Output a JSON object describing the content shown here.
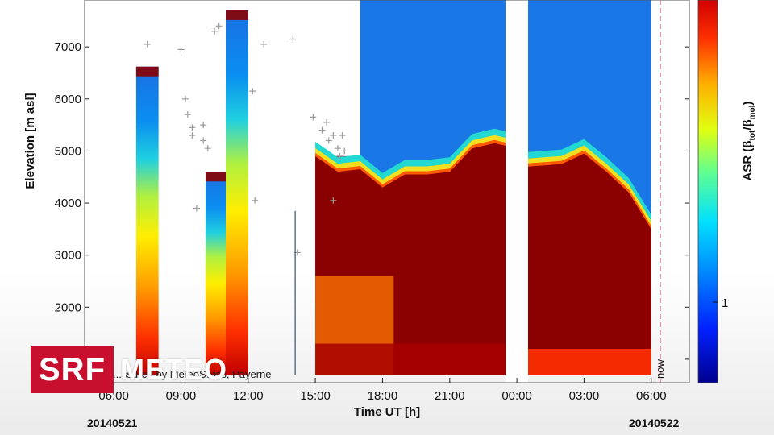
{
  "brand": {
    "logo_box": "SRF",
    "logo_text": "METEO",
    "colors": {
      "logo_red": "#c8102e"
    }
  },
  "chart_data": {
    "type": "heatmap",
    "xlabel": "Time UT [h]",
    "ylabel": "Elevation [m asl]",
    "colorbar_label_main": "ASR (β",
    "colorbar_label_sub1": "tot",
    "colorbar_label_mid": "/β",
    "colorbar_label_sub2": "mol",
    "colorbar_label_end": ")",
    "colorbar_tick": "1",
    "x_tick_labels": [
      "06:00",
      "09:00",
      "12:00",
      "15:00",
      "18:00",
      "21:00",
      "00:00",
      "03:00",
      "06:00"
    ],
    "x_tick_hours": [
      6,
      9,
      12,
      15,
      18,
      21,
      24,
      27,
      30
    ],
    "y_ticks": [
      1000,
      2000,
      3000,
      4000,
      5000,
      6000,
      7000
    ],
    "xlim_hours": [
      4.7,
      31.7
    ],
    "ylim": [
      550,
      7900
    ],
    "dates": {
      "start": "20140521",
      "end": "20140522"
    },
    "credit": "...ssured by MeteoSwiss, Payerne",
    "now_label": "now",
    "now_hour": 30.4,
    "segments": [
      {
        "from": 7.0,
        "to": 8.0,
        "top": 6620,
        "bottom": 700
      },
      {
        "from": 10.1,
        "to": 11.0,
        "top": 4600,
        "bottom": 700
      },
      {
        "from": 11.0,
        "to": 12.0,
        "top": 7700,
        "bottom": 700
      },
      {
        "from": 15.0,
        "to": 17.0,
        "top": 4900,
        "bottom": 700
      },
      {
        "from": 17.0,
        "to": 23.5,
        "top": 7900,
        "bottom": 700
      },
      {
        "from": 24.5,
        "to": 30.0,
        "top": 7900,
        "bottom": 700
      }
    ],
    "cloud_top_profile": [
      {
        "h": 15.0,
        "elev": 4900
      },
      {
        "h": 16.0,
        "elev": 4600
      },
      {
        "h": 17.0,
        "elev": 4650
      },
      {
        "h": 18.0,
        "elev": 4300
      },
      {
        "h": 19.0,
        "elev": 4550
      },
      {
        "h": 20.0,
        "elev": 4550
      },
      {
        "h": 21.0,
        "elev": 4600
      },
      {
        "h": 22.0,
        "elev": 5050
      },
      {
        "h": 23.0,
        "elev": 5150
      },
      {
        "h": 23.5,
        "elev": 5100
      },
      {
        "h": 24.5,
        "elev": 4700
      },
      {
        "h": 26.0,
        "elev": 4750
      },
      {
        "h": 27.0,
        "elev": 4950
      },
      {
        "h": 28.0,
        "elev": 4600
      },
      {
        "h": 29.0,
        "elev": 4200
      },
      {
        "h": 30.0,
        "elev": 3500
      }
    ],
    "cloud_base_points": [
      {
        "h": 7.5,
        "elev": 7050
      },
      {
        "h": 9.0,
        "elev": 6950
      },
      {
        "h": 9.2,
        "elev": 6000
      },
      {
        "h": 9.3,
        "elev": 5700
      },
      {
        "h": 9.5,
        "elev": 5450
      },
      {
        "h": 9.5,
        "elev": 5300
      },
      {
        "h": 10.0,
        "elev": 5500
      },
      {
        "h": 10.2,
        "elev": 5050
      },
      {
        "h": 10.0,
        "elev": 5200
      },
      {
        "h": 9.7,
        "elev": 3900
      },
      {
        "h": 10.7,
        "elev": 7400
      },
      {
        "h": 10.5,
        "elev": 7300
      },
      {
        "h": 12.2,
        "elev": 6150
      },
      {
        "h": 12.7,
        "elev": 7050
      },
      {
        "h": 12.3,
        "elev": 4050
      },
      {
        "h": 14.0,
        "elev": 7150
      },
      {
        "h": 14.2,
        "elev": 3050
      },
      {
        "h": 14.9,
        "elev": 5650
      },
      {
        "h": 15.3,
        "elev": 5400
      },
      {
        "h": 15.6,
        "elev": 5200
      },
      {
        "h": 15.8,
        "elev": 5300
      },
      {
        "h": 16.0,
        "elev": 5050
      },
      {
        "h": 16.2,
        "elev": 5300
      },
      {
        "h": 16.3,
        "elev": 5000
      },
      {
        "h": 15.5,
        "elev": 5550
      },
      {
        "h": 16.1,
        "elev": 4900
      },
      {
        "h": 15.8,
        "elev": 4050
      }
    ],
    "colorscale": [
      "#00008f",
      "#0044ff",
      "#00c8ff",
      "#40ffc0",
      "#ffff00",
      "#ff9000",
      "#ff2000",
      "#8b0000"
    ]
  }
}
